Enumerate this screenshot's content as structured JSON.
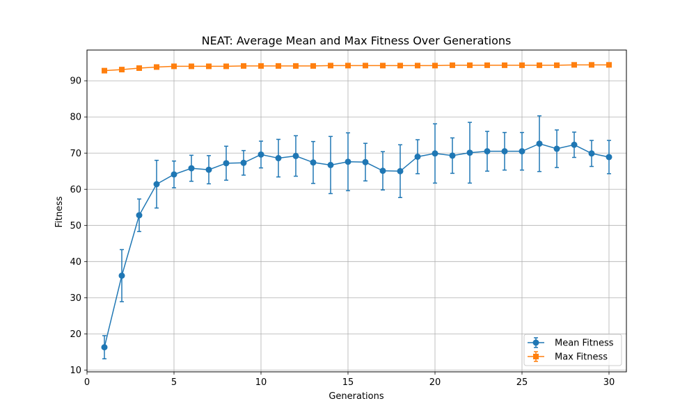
{
  "chart_data": {
    "type": "line",
    "title": "NEAT: Average Mean and Max Fitness Over Generations",
    "xlabel": "Generations",
    "ylabel": "Fitness",
    "xlim": [
      0,
      31
    ],
    "ylim": [
      9.5,
      98.5
    ],
    "xticks": [
      0,
      5,
      10,
      15,
      20,
      25,
      30
    ],
    "yticks": [
      10,
      20,
      30,
      40,
      50,
      60,
      70,
      80,
      90
    ],
    "grid": true,
    "legend_position": "lower-right",
    "x": [
      1,
      2,
      3,
      4,
      5,
      6,
      7,
      8,
      9,
      10,
      11,
      12,
      13,
      14,
      15,
      16,
      17,
      18,
      19,
      20,
      21,
      22,
      23,
      24,
      25,
      26,
      27,
      28,
      29,
      30
    ],
    "series": [
      {
        "name": "Mean Fitness",
        "color": "#1f77b4",
        "marker": "circle",
        "values": [
          16.3,
          36.1,
          52.8,
          61.4,
          64.1,
          65.8,
          65.4,
          67.2,
          67.3,
          69.6,
          68.6,
          69.2,
          67.4,
          66.7,
          67.6,
          67.5,
          65.1,
          65.0,
          69.0,
          69.9,
          69.3,
          70.1,
          70.5,
          70.5,
          70.5,
          72.6,
          71.2,
          72.3,
          69.9,
          68.9
        ],
        "error": [
          3.2,
          7.2,
          4.5,
          6.6,
          3.7,
          3.6,
          3.9,
          4.7,
          3.4,
          3.7,
          5.2,
          5.6,
          5.8,
          7.9,
          8.0,
          5.2,
          5.3,
          7.3,
          4.7,
          8.2,
          4.9,
          8.4,
          5.5,
          5.2,
          5.2,
          7.7,
          5.2,
          3.5,
          3.6,
          4.6
        ]
      },
      {
        "name": "Max Fitness",
        "color": "#ff7f0e",
        "marker": "square",
        "values": [
          92.8,
          93.1,
          93.5,
          93.8,
          94.0,
          94.0,
          94.0,
          94.0,
          94.1,
          94.1,
          94.1,
          94.1,
          94.1,
          94.2,
          94.2,
          94.2,
          94.2,
          94.2,
          94.2,
          94.2,
          94.3,
          94.3,
          94.3,
          94.3,
          94.3,
          94.3,
          94.3,
          94.4,
          94.4,
          94.4
        ],
        "error": [
          0,
          0,
          0,
          0,
          0,
          0,
          0,
          0,
          0,
          0,
          0,
          0,
          0,
          0,
          0,
          0,
          0,
          0,
          0,
          0,
          0,
          0,
          0,
          0,
          0,
          0,
          0,
          0,
          0,
          0
        ]
      }
    ]
  }
}
